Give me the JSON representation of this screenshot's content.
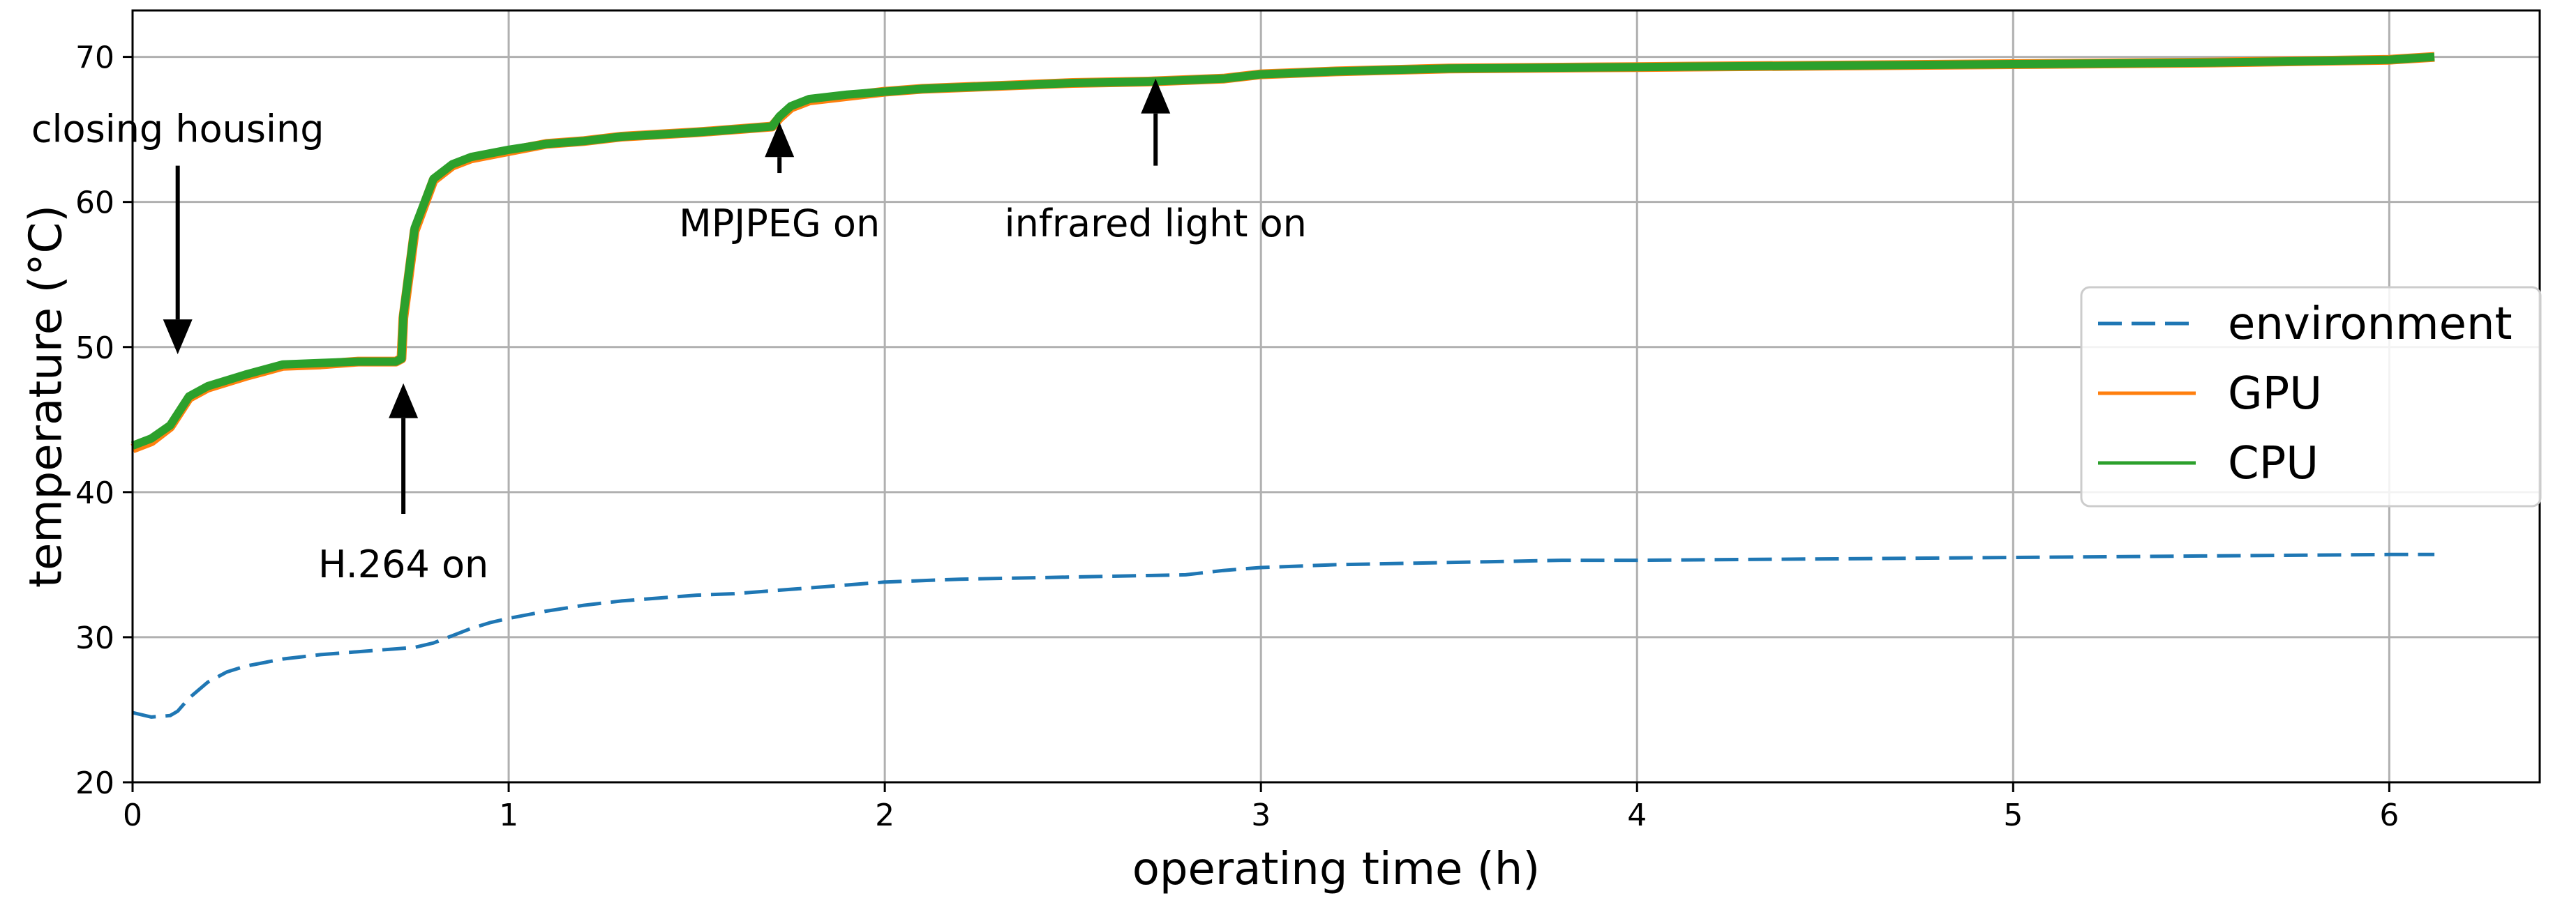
{
  "chart_data": {
    "type": "line",
    "title": "",
    "xlabel": "operating time (h)",
    "ylabel": "temperature (°C)",
    "xlim": [
      0,
      6.4
    ],
    "ylim": [
      20,
      73.2
    ],
    "xticks": [
      0,
      1,
      2,
      3,
      4,
      5,
      6
    ],
    "xtick_labels": [
      "0",
      "1",
      "2",
      "3",
      "4",
      "5",
      "6"
    ],
    "yticks": [
      20,
      30,
      40,
      50,
      60,
      70
    ],
    "ytick_labels": [
      "20",
      "30",
      "40",
      "50",
      "60",
      "70"
    ],
    "grid": true,
    "legend_position": "center-right",
    "series": [
      {
        "name": "environment",
        "color": "#1f77b4",
        "style": "dashed",
        "x": [
          0,
          0.05,
          0.1,
          0.12,
          0.15,
          0.2,
          0.25,
          0.3,
          0.4,
          0.5,
          0.6,
          0.7,
          0.75,
          0.8,
          0.85,
          0.9,
          0.95,
          1.0,
          1.1,
          1.2,
          1.3,
          1.4,
          1.5,
          1.6,
          1.7,
          1.8,
          1.9,
          2.0,
          2.2,
          2.4,
          2.6,
          2.8,
          2.9,
          3.0,
          3.2,
          3.4,
          3.6,
          3.8,
          4.0,
          4.5,
          5.0,
          5.5,
          6.0,
          6.12
        ],
        "y": [
          24.8,
          24.5,
          24.6,
          24.9,
          25.8,
          26.9,
          27.6,
          28.0,
          28.5,
          28.8,
          29.0,
          29.2,
          29.3,
          29.6,
          30.1,
          30.6,
          31.0,
          31.3,
          31.8,
          32.2,
          32.5,
          32.7,
          32.9,
          33.0,
          33.2,
          33.4,
          33.6,
          33.8,
          34.0,
          34.1,
          34.2,
          34.3,
          34.6,
          34.8,
          35.0,
          35.1,
          35.2,
          35.3,
          35.3,
          35.4,
          35.5,
          35.6,
          35.7,
          35.7
        ]
      },
      {
        "name": "GPU",
        "color": "#ff7f0e",
        "style": "solid",
        "x": [
          0,
          0.05,
          0.1,
          0.15,
          0.2,
          0.3,
          0.4,
          0.5,
          0.6,
          0.7,
          0.715,
          0.72,
          0.75,
          0.8,
          0.85,
          0.9,
          1.0,
          1.1,
          1.2,
          1.3,
          1.5,
          1.7,
          1.72,
          1.75,
          1.8,
          1.9,
          2.0,
          2.1,
          2.3,
          2.5,
          2.7,
          2.9,
          3.0,
          3.2,
          3.5,
          4.0,
          4.5,
          5.0,
          5.5,
          6.0,
          6.12
        ],
        "y": [
          43.0,
          43.5,
          44.5,
          46.5,
          47.2,
          48.0,
          48.7,
          48.8,
          49.0,
          49.0,
          49.2,
          52.0,
          58.0,
          61.5,
          62.5,
          63.0,
          63.5,
          64.0,
          64.2,
          64.5,
          64.8,
          65.2,
          65.8,
          66.5,
          67.0,
          67.3,
          67.6,
          67.8,
          68.0,
          68.2,
          68.3,
          68.5,
          68.8,
          69.0,
          69.2,
          69.3,
          69.4,
          69.5,
          69.6,
          69.8,
          70.0
        ]
      },
      {
        "name": "CPU",
        "color": "#2ca02c",
        "style": "solid",
        "x": [
          0,
          0.05,
          0.1,
          0.15,
          0.2,
          0.3,
          0.4,
          0.5,
          0.6,
          0.7,
          0.715,
          0.72,
          0.75,
          0.8,
          0.85,
          0.9,
          1.0,
          1.1,
          1.2,
          1.3,
          1.5,
          1.7,
          1.72,
          1.75,
          1.8,
          1.9,
          2.0,
          2.1,
          2.3,
          2.5,
          2.7,
          2.9,
          3.0,
          3.2,
          3.5,
          4.0,
          4.5,
          5.0,
          5.5,
          6.0,
          6.12
        ],
        "y": [
          43.2,
          43.7,
          44.6,
          46.6,
          47.3,
          48.1,
          48.8,
          48.9,
          49.0,
          49.0,
          49.2,
          52.2,
          58.2,
          61.6,
          62.6,
          63.1,
          63.6,
          64.0,
          64.2,
          64.5,
          64.8,
          65.2,
          65.9,
          66.6,
          67.1,
          67.4,
          67.6,
          67.8,
          68.0,
          68.2,
          68.3,
          68.5,
          68.8,
          69.0,
          69.2,
          69.3,
          69.4,
          69.5,
          69.6,
          69.8,
          70.0
        ]
      }
    ],
    "annotations": [
      {
        "text": "closing housing",
        "arrow_x": 0.12,
        "arrow_from_y": 62.5,
        "arrow_to_y": 49.5,
        "text_x": 0.12,
        "text_y": 65
      },
      {
        "text": "H.264 on",
        "arrow_x": 0.72,
        "arrow_from_y": 38.5,
        "arrow_to_y": 47.5,
        "text_x": 0.72,
        "text_y": 35
      },
      {
        "text": "MPJPEG on",
        "arrow_x": 1.72,
        "arrow_from_y": 62.0,
        "arrow_to_y": 65.5,
        "text_x": 1.72,
        "text_y": 58.5
      },
      {
        "text": "infrared light on",
        "arrow_x": 2.72,
        "arrow_from_y": 62.5,
        "arrow_to_y": 68.5,
        "text_x": 2.72,
        "text_y": 58.5
      }
    ]
  }
}
